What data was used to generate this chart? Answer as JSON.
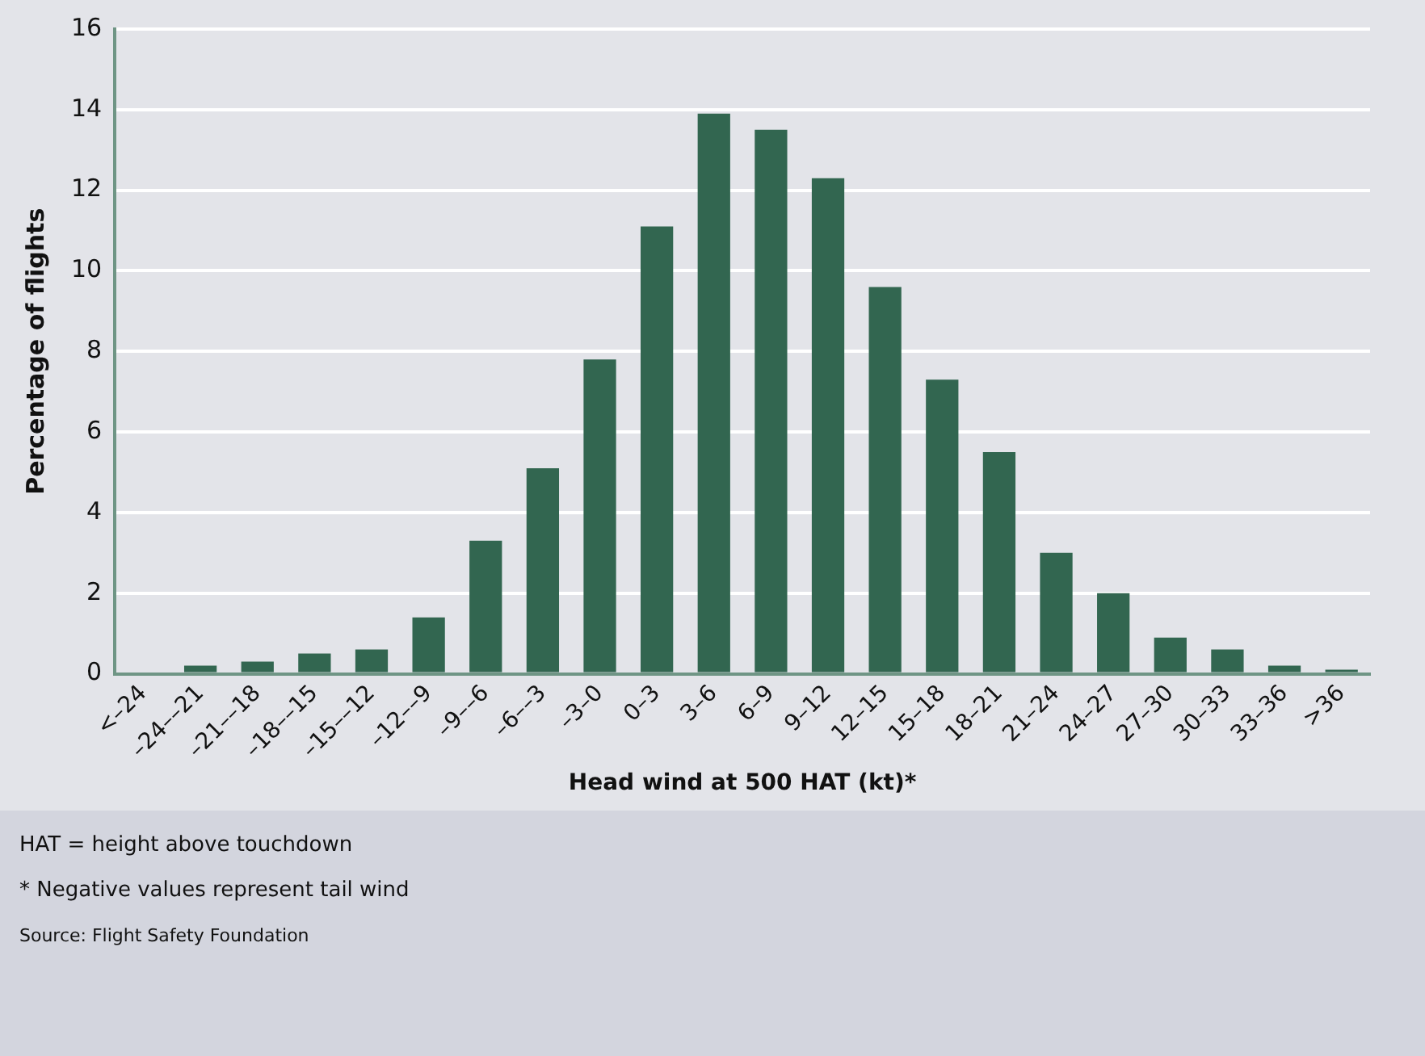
{
  "chart_data": {
    "type": "bar",
    "xlabel": "Head wind at 500 HAT (kt)*",
    "ylabel": "Percentage of flights",
    "categories": [
      "<–24",
      "–24––21",
      "–21––18",
      "–18––15",
      "–15––12",
      "–12––9",
      "–9––6",
      "–6––3",
      "–3–0",
      "0–3",
      "3–6",
      "6–9",
      "9–12",
      "12–15",
      "15–18",
      "18–21",
      "21–24",
      "24–27",
      "27–30",
      "30–33",
      "33–36",
      ">36"
    ],
    "values": [
      0,
      0.2,
      0.3,
      0.5,
      0.6,
      1.4,
      3.3,
      5.1,
      7.8,
      11.1,
      13.9,
      13.5,
      12.3,
      9.6,
      7.3,
      5.5,
      3.0,
      2.0,
      0.9,
      0.6,
      0.2,
      0.1
    ],
    "color": "#326650",
    "ylim": [
      0,
      16
    ],
    "yticks": [
      0,
      2,
      4,
      6,
      8,
      10,
      12,
      14,
      16
    ],
    "grid": "y",
    "legend": false,
    "annotations": [
      "HAT = height above touchdown",
      "* Negative values represent tail wind",
      "Source: Flight Safety Foundation"
    ]
  }
}
